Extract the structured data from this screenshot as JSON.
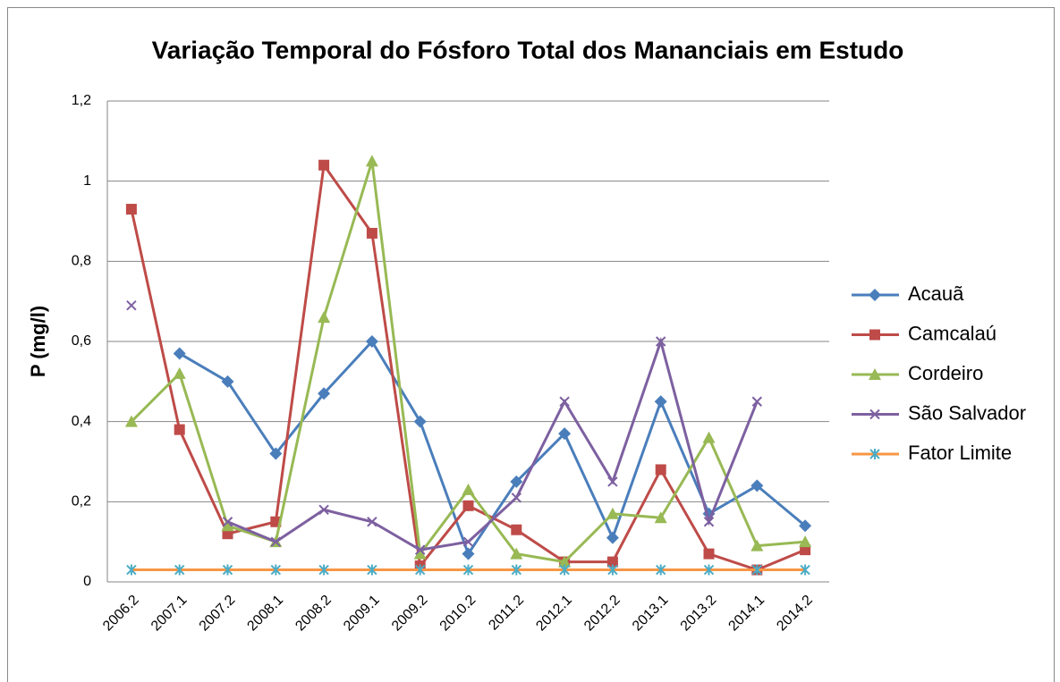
{
  "chart_data": {
    "type": "line",
    "title": "Variação Temporal do Fósforo Total dos Mananciais em Estudo",
    "y_label": "P (mg/l)",
    "categories": [
      "2006.2",
      "2007.1",
      "2007.2",
      "2008.1",
      "2008.2",
      "2009.1",
      "2009.2",
      "2010.2",
      "2011.2",
      "2012.1",
      "2012.2",
      "2013.1",
      "2013.2",
      "2014.1",
      "2014.2"
    ],
    "ylim": [
      0,
      1.2
    ],
    "yticks": [
      0,
      {
        "value": 0.2,
        "label": "0,2"
      },
      {
        "value": 0.4,
        "label": "0,4"
      },
      {
        "value": 0.6,
        "label": "0,6"
      },
      {
        "value": 0.8,
        "label": "0,8"
      },
      1,
      {
        "value": 1.2,
        "label": "1,2"
      }
    ],
    "grid": true,
    "legend": "right",
    "series": [
      {
        "name": "Acauã",
        "color": "#4a7ebb",
        "marker": "diamond",
        "values": [
          null,
          0.57,
          0.5,
          0.32,
          0.47,
          0.6,
          0.4,
          0.07,
          0.25,
          0.37,
          0.11,
          0.45,
          0.17,
          0.24,
          0.14
        ]
      },
      {
        "name": "Camcalaú",
        "color": "#be4b48",
        "marker": "square",
        "values": [
          0.93,
          0.38,
          0.12,
          0.15,
          1.04,
          0.87,
          0.04,
          0.19,
          0.13,
          0.05,
          0.05,
          0.28,
          0.07,
          0.03,
          0.08
        ]
      },
      {
        "name": "Cordeiro",
        "color": "#98b954",
        "marker": "triangle",
        "values": [
          0.4,
          0.52,
          0.14,
          0.1,
          0.66,
          1.05,
          0.07,
          0.23,
          0.07,
          0.05,
          0.17,
          0.16,
          0.36,
          0.09,
          0.1
        ]
      },
      {
        "name": "São Salvador",
        "color": "#7d60a0",
        "marker": "x",
        "values": [
          0.69,
          null,
          0.15,
          0.1,
          0.18,
          0.15,
          0.08,
          0.1,
          0.21,
          0.45,
          0.25,
          0.6,
          0.15,
          0.45,
          null
        ]
      },
      {
        "name": "Fator Limite",
        "color": "#f79646",
        "marker_color": "#4bacc6",
        "marker": "star",
        "values": [
          0.03,
          0.03,
          0.03,
          0.03,
          0.03,
          0.03,
          0.03,
          0.03,
          0.03,
          0.03,
          0.03,
          0.03,
          0.03,
          0.03,
          0.03
        ]
      }
    ]
  }
}
